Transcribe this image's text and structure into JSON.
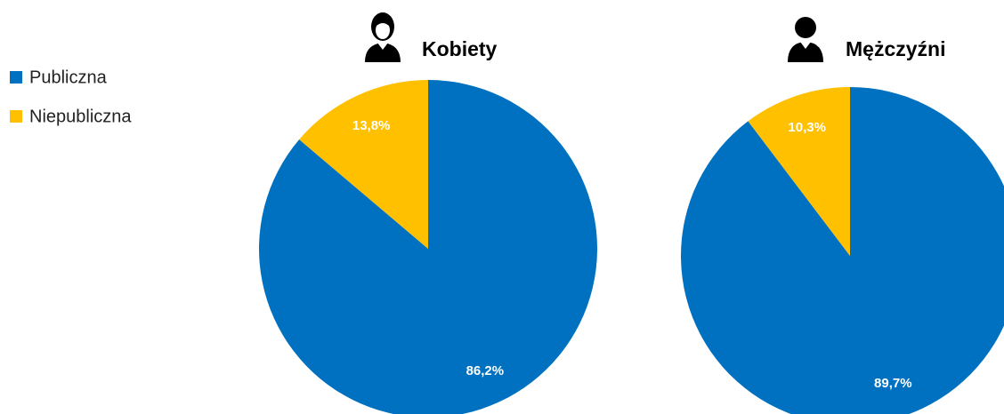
{
  "chart_data": [
    {
      "type": "pie",
      "title": "Kobiety",
      "categories": [
        "Publiczna",
        "Niepubliczna"
      ],
      "values": [
        86.2,
        13.8
      ],
      "value_labels": [
        "86,2%",
        "13,8%"
      ],
      "colors": [
        "#0070c0",
        "#ffc000"
      ],
      "legend": "left"
    },
    {
      "type": "pie",
      "title": "Mężczyźni",
      "values": [
        89.7,
        10.3
      ],
      "value_labels": [
        "89,7%",
        "10,3%"
      ],
      "colors": [
        "#0070c0",
        "#ffc000"
      ]
    }
  ]
}
